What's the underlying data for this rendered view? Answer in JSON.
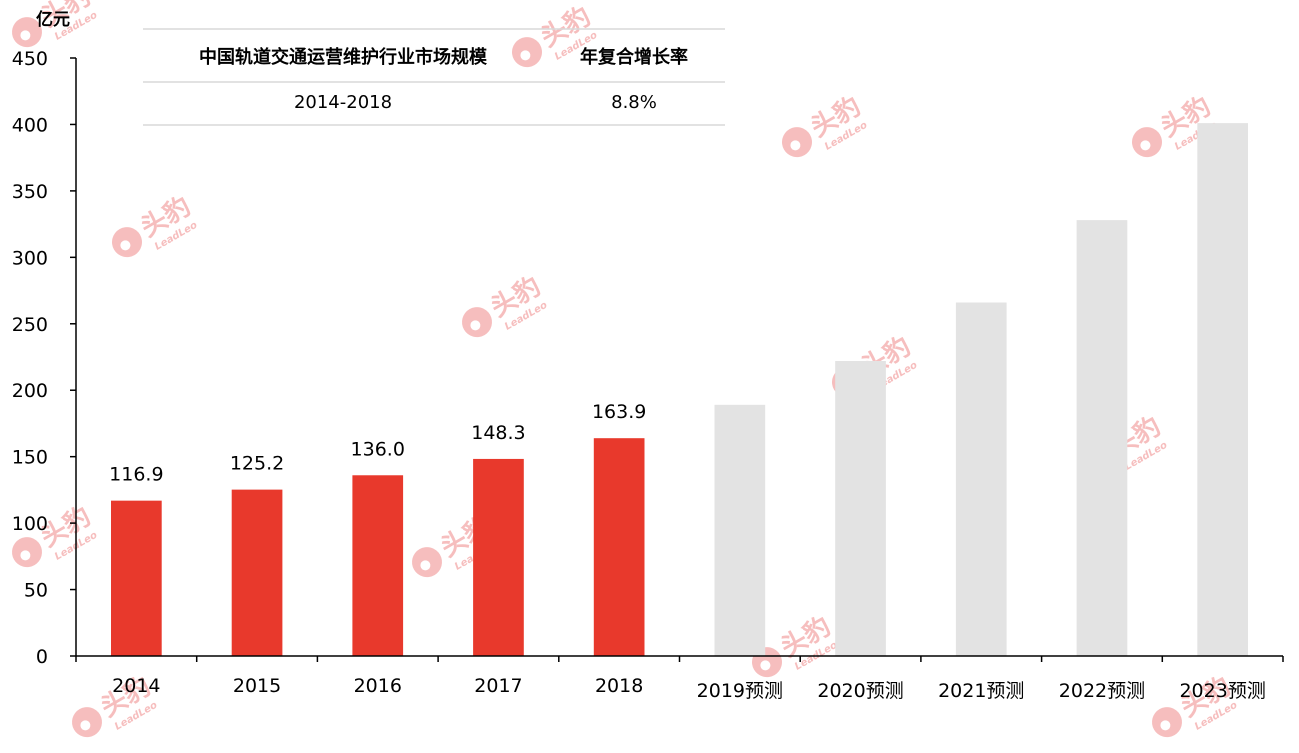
{
  "chart_data": {
    "type": "bar",
    "ylabel": "亿元",
    "ylim": [
      0,
      450
    ],
    "yticks": [
      0,
      50,
      100,
      150,
      200,
      250,
      300,
      350,
      400,
      450
    ],
    "categories": [
      "2014",
      "2015",
      "2016",
      "2017",
      "2018",
      "2019预测",
      "2020预测",
      "2021预测",
      "2022预测",
      "2023预测"
    ],
    "values": [
      116.9,
      125.2,
      136.0,
      148.3,
      163.9,
      189,
      222,
      266,
      328,
      401
    ],
    "labels": [
      "116.9",
      "125.2",
      "136.0",
      "148.3",
      "163.9",
      "",
      "",
      "",
      "",
      ""
    ],
    "colors": [
      "#e8392c",
      "#e8392c",
      "#e8392c",
      "#e8392c",
      "#e8392c",
      "#e3e3e3",
      "#e3e3e3",
      "#e3e3e3",
      "#e3e3e3",
      "#e3e3e3"
    ],
    "grid": false
  },
  "info_table": {
    "headers": [
      "中国轨道交通运营维护行业市场规模",
      "年复合增长率"
    ],
    "rows": [
      [
        "2014-2018",
        "8.8%"
      ]
    ]
  },
  "watermark": {
    "text": "头豹",
    "sub": "LeadLeo",
    "color": "#f08a8a"
  }
}
